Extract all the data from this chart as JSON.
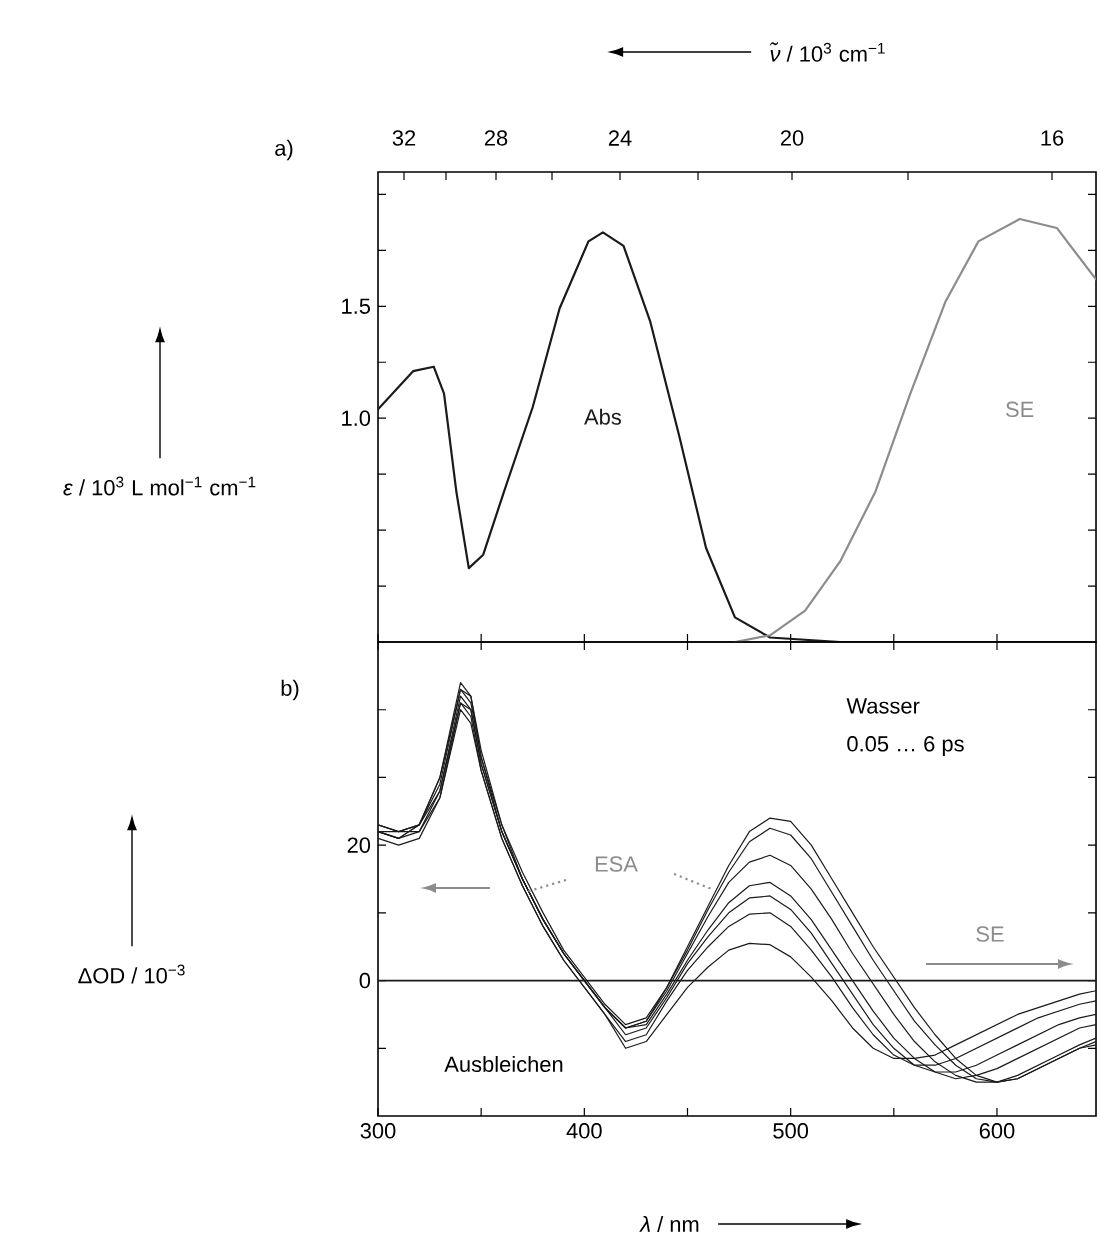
{
  "chart_data": [
    {
      "type": "line",
      "x2label": "*ν̃* / 10$^{3}$ cm$^{−1}$",
      "ylabel": "*ε* / 10$^{3}$ L mol$^{−1}$ cm$^{−1}$",
      "xlim": [
        300,
        648
      ],
      "xticks": [
        300,
        {
          "value": 350,
          "label": null
        },
        400,
        {
          "value": 450,
          "label": null
        },
        500,
        {
          "value": 550,
          "label": null
        },
        600
      ],
      "tick_labels": "y",
      "ylim": [
        0,
        2.1
      ],
      "yticks": [
        {
          "value": 0.25,
          "label": null
        },
        {
          "value": 0.5,
          "label": null
        },
        {
          "value": 0.75,
          "label": null
        },
        {
          "value": 1,
          "label": "1.0"
        },
        {
          "value": 1.25,
          "label": null
        },
        {
          "value": 1.5,
          "label": "1.5"
        },
        {
          "value": 1.75,
          "label": null
        },
        {
          "value": 2,
          "label": null
        }
      ],
      "annotations": [
        "a)",
        "32",
        "28",
        "24",
        "20",
        "16"
      ],
      "series": [
        {
          "name": "Abs",
          "color": "#1a1a1a",
          "x": [
            300,
            317,
            327,
            332,
            338,
            344,
            351,
            361,
            375,
            388,
            402,
            409,
            419,
            432,
            446,
            459,
            473,
            490,
            524,
            560,
            600,
            648
          ],
          "values": [
            1.04,
            1.21,
            1.23,
            1.11,
            0.67,
            0.33,
            0.39,
            0.67,
            1.05,
            1.49,
            1.79,
            1.83,
            1.77,
            1.43,
            0.92,
            0.42,
            0.11,
            0.02,
            0,
            0,
            0,
            0
          ]
        },
        {
          "name": "SE",
          "color": "#8c8c8c",
          "x": [
            473,
            490,
            507,
            524,
            541,
            558,
            575,
            591,
            611,
            629,
            648
          ],
          "values": [
            0,
            0.03,
            0.14,
            0.36,
            0.67,
            1.11,
            1.52,
            1.79,
            1.89,
            1.85,
            1.62
          ]
        }
      ]
    },
    {
      "type": "line",
      "xlabel": "*λ* / nm",
      "ylabel": "ΔOD / 10$^{−3}$",
      "xlim": [
        300,
        648
      ],
      "xticks": [
        300,
        {
          "value": 350,
          "label": null
        },
        400,
        {
          "value": 450,
          "label": null
        },
        500,
        {
          "value": 550,
          "label": null
        },
        600
      ],
      "ylim": [
        -20,
        50
      ],
      "yticks": [
        {
          "value": -10,
          "label": null
        },
        0,
        {
          "value": 10,
          "label": null
        },
        20,
        {
          "value": 30,
          "label": null
        },
        {
          "value": 40,
          "label": null
        }
      ],
      "ref_lines": [
        {
          "axis": "y",
          "value": 0,
          "color": "#1a1a1a"
        }
      ],
      "annotations": [
        "b)",
        "Wasser",
        "0.05 … 6 ps",
        "Ausbleichen",
        "ESA",
        "SE"
      ],
      "x": [
        300,
        310,
        320,
        330,
        340,
        345,
        350,
        360,
        370,
        380,
        390,
        400,
        410,
        420,
        430,
        440,
        450,
        460,
        470,
        480,
        490,
        500,
        510,
        520,
        530,
        540,
        550,
        560,
        570,
        580,
        590,
        600,
        610,
        620,
        630,
        640,
        648
      ],
      "series": [
        {
          "color": "#1a1a1a",
          "values": [
            21,
            20,
            21,
            27,
            40,
            38,
            31,
            21,
            14,
            8,
            3,
            -1,
            -5,
            -10,
            -9,
            -5,
            -1,
            2,
            4.5,
            5.5,
            5.3,
            3.5,
            0.5,
            -3,
            -7,
            -10,
            -11.5,
            -11.5,
            -11,
            -9.5,
            -8,
            -6.5,
            -5,
            -4,
            -3,
            -2,
            -1.5
          ]
        },
        {
          "color": "#1a1a1a",
          "values": [
            22,
            21,
            22,
            27,
            41,
            39,
            31,
            21,
            14,
            8,
            3,
            -1,
            -5,
            -9,
            -8,
            -3,
            1.5,
            5,
            8,
            9.8,
            10,
            8,
            4.5,
            0.5,
            -4,
            -8,
            -11,
            -12.5,
            -12.5,
            -11.5,
            -10,
            -8.5,
            -7,
            -5.5,
            -4.5,
            -3.5,
            -3
          ]
        },
        {
          "color": "#1a1a1a",
          "values": [
            22,
            21,
            23,
            28,
            41,
            40,
            32,
            22,
            15,
            9,
            4,
            0,
            -4,
            -8,
            -7,
            -2.5,
            2.5,
            6.5,
            10,
            12.2,
            12.5,
            10.5,
            7,
            2.5,
            -2,
            -6.5,
            -10,
            -12.5,
            -13.5,
            -13.5,
            -12.5,
            -11,
            -9.5,
            -8,
            -6.5,
            -5.5,
            -5
          ]
        },
        {
          "color": "#1a1a1a",
          "values": [
            23,
            22,
            22,
            28,
            42,
            40,
            32,
            22,
            15,
            9,
            4,
            0,
            -4,
            -7,
            -6.5,
            -2,
            3,
            7.5,
            11.5,
            14,
            14.5,
            12.5,
            9,
            4.5,
            0,
            -4.5,
            -8.5,
            -11.5,
            -13.5,
            -14.5,
            -14,
            -13,
            -11.5,
            -10,
            -8.5,
            -7,
            -6.5
          ]
        },
        {
          "color": "#1a1a1a",
          "values": [
            22,
            22,
            23,
            29,
            43,
            41,
            33,
            22,
            15,
            9,
            4,
            0,
            -4,
            -7,
            -6,
            -1.5,
            4,
            9.5,
            14.5,
            17.5,
            18.5,
            17,
            13.5,
            9,
            4,
            -0.5,
            -5,
            -9,
            -12,
            -14,
            -15,
            -15,
            -14,
            -12.5,
            -11,
            -9.5,
            -8.5
          ]
        },
        {
          "color": "#1a1a1a",
          "values": [
            23,
            22,
            23,
            30,
            43,
            42,
            33,
            23,
            15,
            9,
            4,
            0,
            -4,
            -7,
            -6,
            -1,
            4.5,
            10.5,
            16,
            20.5,
            22.5,
            21.5,
            18,
            13,
            8,
            3,
            -1.5,
            -6,
            -9.5,
            -12.5,
            -14.5,
            -15,
            -14.5,
            -13,
            -11.5,
            -10,
            -9
          ]
        },
        {
          "color": "#1a1a1a",
          "values": [
            22,
            21,
            23,
            30,
            44,
            42,
            34,
            23,
            16,
            10,
            4.5,
            0.5,
            -3.5,
            -6.5,
            -5.5,
            -1,
            5,
            11,
            17,
            22,
            24,
            23.5,
            20,
            15,
            10,
            5,
            0.5,
            -4,
            -8,
            -11.5,
            -14,
            -15,
            -14.5,
            -13,
            -11.5,
            -10,
            -9.5
          ]
        }
      ]
    }
  ]
}
